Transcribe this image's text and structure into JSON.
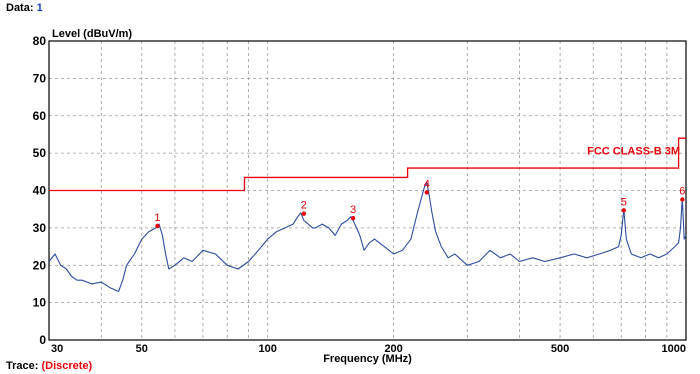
{
  "header": {
    "data_label": "Data:",
    "data_value": "1"
  },
  "footer": {
    "trace_label": "Trace:",
    "trace_value": "(Discrete)"
  },
  "colors": {
    "trace": "#2e4da0",
    "limit": "#e8000b",
    "marker": "#e8000b",
    "grid": "#9a9a9a",
    "frame": "#000000"
  },
  "chart_data": {
    "type": "line",
    "title": "",
    "xlabel": "Frequency (MHz)",
    "ylabel": "Level (dBuV/m)",
    "x_scale": "log",
    "xlim": [
      30,
      1000
    ],
    "ylim": [
      0,
      80
    ],
    "grid": true,
    "x_ticks": [
      30,
      50,
      100,
      200,
      500,
      1000
    ],
    "x_tick_labels": [
      "30",
      "50",
      "100",
      "200",
      "500",
      "1000"
    ],
    "y_ticks": [
      0,
      10,
      20,
      30,
      40,
      50,
      60,
      70,
      80
    ],
    "y_tick_labels": [
      "0",
      "10",
      "20",
      "30",
      "40",
      "50",
      "60",
      "70",
      "80"
    ],
    "limit_line": {
      "label": "FCC CLASS-B   3M",
      "segments": [
        {
          "x": [
            30,
            88
          ],
          "y": 40
        },
        {
          "x": [
            88,
            216
          ],
          "y": 43.5
        },
        {
          "x": [
            216,
            960
          ],
          "y": 46
        },
        {
          "x": [
            960,
            1000
          ],
          "y": 54
        }
      ]
    },
    "series": [
      {
        "x": [
          30,
          31,
          32,
          33,
          34,
          35,
          36,
          38,
          40,
          42,
          44,
          45,
          46,
          48,
          50,
          52,
          54,
          55,
          56,
          57,
          58,
          60,
          63,
          66,
          70,
          75,
          80,
          85,
          90,
          95,
          100,
          105,
          110,
          115,
          118,
          120,
          122,
          125,
          128,
          130,
          135,
          140,
          145,
          150,
          155,
          158,
          160,
          163,
          166,
          170,
          175,
          180,
          190,
          200,
          210,
          220,
          228,
          233,
          237,
          240,
          243,
          247,
          252,
          260,
          270,
          280,
          300,
          320,
          340,
          360,
          380,
          400,
          430,
          460,
          500,
          540,
          580,
          620,
          660,
          690,
          700,
          710,
          720,
          740,
          780,
          820,
          860,
          900,
          940,
          960,
          970,
          980,
          990,
          1000
        ],
        "y": [
          21,
          23,
          20,
          19,
          17,
          16,
          16,
          15,
          15.5,
          14,
          13,
          16,
          20,
          23,
          27,
          29,
          30,
          31,
          28,
          23,
          19,
          20,
          22,
          21,
          24,
          23,
          20,
          19,
          21,
          24,
          27,
          29,
          30,
          31,
          33,
          34,
          32,
          31,
          30,
          30,
          31,
          30,
          28,
          31,
          32,
          33,
          32,
          30,
          28,
          24,
          26,
          27,
          25,
          23,
          24,
          27,
          34,
          38,
          41,
          42,
          39,
          34,
          29,
          25,
          22,
          23,
          20,
          21,
          24,
          22,
          23,
          21,
          22,
          21,
          22,
          23,
          22,
          23,
          24,
          25,
          28,
          35,
          27,
          23,
          22,
          23,
          22,
          23,
          25,
          26,
          30,
          38,
          27,
          28
        ]
      }
    ],
    "markers": [
      {
        "label": "1",
        "x": 54.5,
        "y": 30.5
      },
      {
        "label": "2",
        "x": 122,
        "y": 33.8
      },
      {
        "label": "3",
        "x": 160,
        "y": 32.6
      },
      {
        "label": "4",
        "x": 240,
        "y": 39.5
      },
      {
        "label": "5",
        "x": 710,
        "y": 34.7
      },
      {
        "label": "6",
        "x": 980,
        "y": 37.6
      }
    ]
  }
}
